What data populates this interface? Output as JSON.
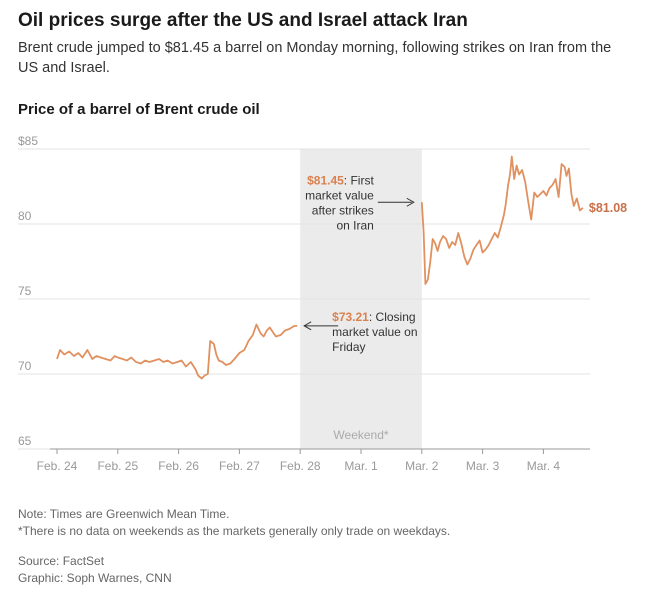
{
  "header": {
    "title": "Oil prices surge after the US and Israel attack Iran",
    "subtitle": "Brent crude jumped to $81.45 a barrel on Monday morning, following strikes on Iran from the US and Israel."
  },
  "footer": {
    "note_1": "Note: Times are Greenwich Mean Time.",
    "note_2": "*There is no data on weekends as the markets generally only trade on weekdays.",
    "source": "Source: FactSet",
    "graphic": "Graphic: Soph Warnes, CNN"
  },
  "colors": {
    "line": "#e0915f",
    "accent_text": "#d9824f",
    "end_label": "#c8714a",
    "weekend_band": "#ebebeb"
  },
  "chart_data": {
    "type": "line",
    "title": "Price of a barrel of Brent crude oil",
    "xlabel": "",
    "ylabel": "",
    "ylim": [
      65,
      85
    ],
    "y_ticks": [
      65,
      70,
      75,
      80,
      85
    ],
    "y_tick_labels": [
      "65",
      "70",
      "75",
      "80",
      "$85"
    ],
    "x_ticks": [
      0,
      1,
      2,
      3,
      4,
      5,
      6,
      7,
      8
    ],
    "x_tick_labels": [
      "Feb. 24",
      "Feb. 25",
      "Feb. 26",
      "Feb. 27",
      "Feb. 28",
      "Mar. 1",
      "Mar. 2",
      "Mar. 3",
      "Mar. 4"
    ],
    "grid": true,
    "shaded_region": {
      "x_start": 4.0,
      "x_end": 6.0,
      "label": "Weekend*"
    },
    "series": [
      {
        "name": "Brent crude",
        "x": [
          0.0,
          0.05,
          0.12,
          0.2,
          0.28,
          0.35,
          0.42,
          0.5,
          0.58,
          0.65,
          0.72,
          0.8,
          0.88,
          0.95,
          1.0,
          1.08,
          1.15,
          1.22,
          1.3,
          1.38,
          1.45,
          1.52,
          1.6,
          1.68,
          1.75,
          1.82,
          1.9,
          1.98,
          2.05,
          2.12,
          2.2,
          2.28,
          2.32,
          2.38,
          2.43,
          2.48,
          2.52,
          2.58,
          2.62,
          2.66,
          2.72,
          2.78,
          2.85,
          2.92,
          3.0,
          3.08,
          3.15,
          3.22,
          3.28,
          3.35,
          3.4,
          3.45,
          3.5,
          3.55,
          3.6,
          3.68,
          3.75,
          3.82,
          3.9,
          3.95,
          6.0,
          6.03,
          6.06,
          6.1,
          6.14,
          6.18,
          6.22,
          6.26,
          6.3,
          6.35,
          6.4,
          6.45,
          6.5,
          6.55,
          6.6,
          6.65,
          6.7,
          6.75,
          6.8,
          6.85,
          6.9,
          6.95,
          7.0,
          7.05,
          7.1,
          7.15,
          7.2,
          7.25,
          7.3,
          7.35,
          7.38,
          7.42,
          7.45,
          7.48,
          7.52,
          7.56,
          7.6,
          7.65,
          7.7,
          7.75,
          7.8,
          7.85,
          7.9,
          7.95,
          8.0,
          8.05,
          8.1,
          8.15,
          8.2,
          8.25,
          8.3,
          8.35,
          8.38,
          8.42,
          8.46,
          8.5,
          8.55,
          8.6,
          8.65
        ],
        "values": [
          71.0,
          71.6,
          71.3,
          71.5,
          71.2,
          71.4,
          71.1,
          71.6,
          71.0,
          71.2,
          71.1,
          71.0,
          70.9,
          71.2,
          71.1,
          71.0,
          70.9,
          71.1,
          70.8,
          70.7,
          70.9,
          70.8,
          70.9,
          71.0,
          70.8,
          70.9,
          70.7,
          70.8,
          70.9,
          70.5,
          70.8,
          70.3,
          69.9,
          69.7,
          69.9,
          70.0,
          72.2,
          72.0,
          71.3,
          70.9,
          70.8,
          70.6,
          70.7,
          71.0,
          71.4,
          71.6,
          72.2,
          72.6,
          73.3,
          72.7,
          72.5,
          72.9,
          73.1,
          72.8,
          72.5,
          72.6,
          72.9,
          73.0,
          73.2,
          73.21,
          81.45,
          79.5,
          76.0,
          76.3,
          77.5,
          79.0,
          78.7,
          78.2,
          78.8,
          79.2,
          79.0,
          78.4,
          78.8,
          78.6,
          79.4,
          78.7,
          77.8,
          77.3,
          77.7,
          78.3,
          78.6,
          78.9,
          78.1,
          78.3,
          78.6,
          79.0,
          79.4,
          79.1,
          79.8,
          80.6,
          81.3,
          82.6,
          83.3,
          84.5,
          83.0,
          83.9,
          83.3,
          83.6,
          82.8,
          81.5,
          80.3,
          82.1,
          81.8,
          82.0,
          82.2,
          81.9,
          82.4,
          82.6,
          83.0,
          81.8,
          84.0,
          83.8,
          83.2,
          83.7,
          82.0,
          81.2,
          81.7,
          80.9,
          81.08
        ]
      }
    ],
    "annotations": [
      {
        "x": 6.0,
        "y": 81.45,
        "value_text": "$81.45",
        "lines": [
          ": First",
          "market value",
          "after strikes",
          "on Iran"
        ]
      },
      {
        "x": 3.95,
        "y": 73.21,
        "value_text": "$73.21",
        "lines": [
          ": Closing",
          "market value on",
          "Friday"
        ]
      }
    ],
    "end_label": {
      "x": 8.65,
      "y": 81.08,
      "text": "$81.08"
    }
  }
}
